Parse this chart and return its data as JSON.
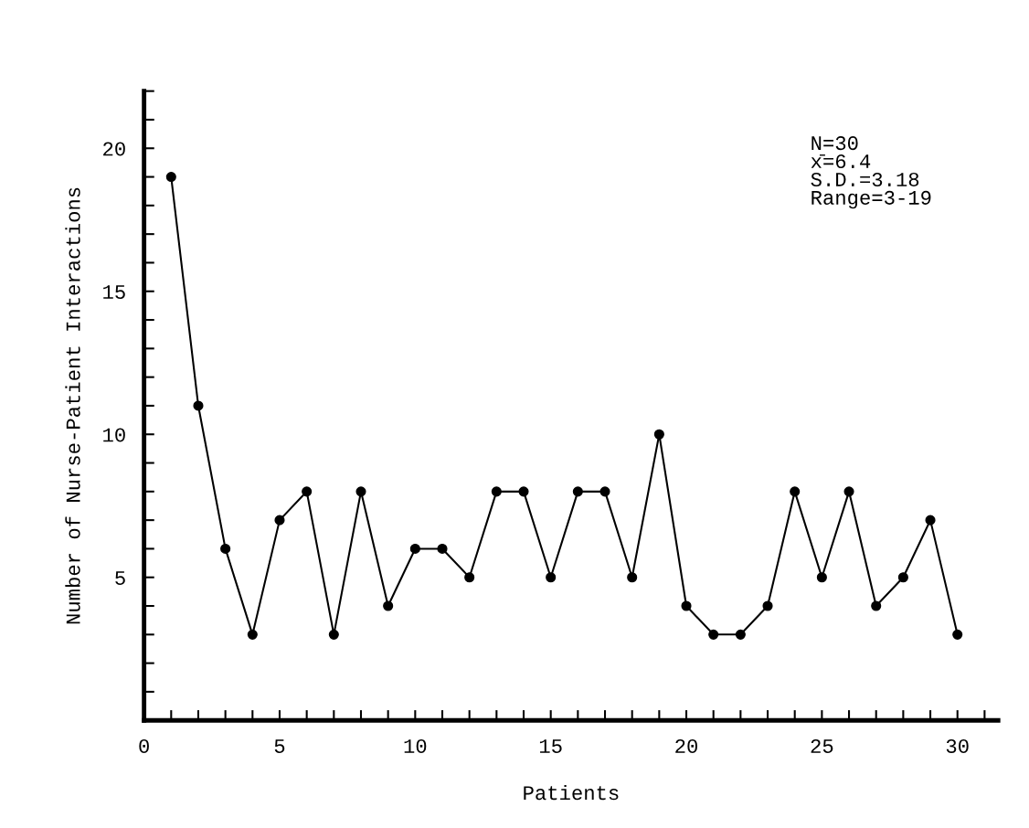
{
  "chart_data": {
    "type": "line",
    "xlabel": "Patients",
    "ylabel": "Number of Nurse-Patient Interactions",
    "x": [
      1,
      2,
      3,
      4,
      5,
      6,
      7,
      8,
      9,
      10,
      11,
      12,
      13,
      14,
      15,
      16,
      17,
      18,
      19,
      20,
      21,
      22,
      23,
      24,
      25,
      26,
      27,
      28,
      29,
      30
    ],
    "series": [
      {
        "color": "#000000",
        "values": [
          19,
          11,
          6,
          3,
          7,
          8,
          3,
          8,
          4,
          6,
          6,
          5,
          8,
          8,
          5,
          8,
          8,
          5,
          10,
          4,
          3,
          3,
          4,
          8,
          5,
          8,
          4,
          5,
          7,
          3
        ]
      }
    ],
    "xlim": [
      0,
      31.5
    ],
    "xticks": [
      0,
      {
        "value": 1,
        "label": null
      },
      {
        "value": 2,
        "label": null
      },
      {
        "value": 3,
        "label": null
      },
      {
        "value": 4,
        "label": null
      },
      5,
      {
        "value": 6,
        "label": null
      },
      {
        "value": 7,
        "label": null
      },
      {
        "value": 8,
        "label": null
      },
      {
        "value": 9,
        "label": null
      },
      10,
      {
        "value": 11,
        "label": null
      },
      {
        "value": 12,
        "label": null
      },
      {
        "value": 13,
        "label": null
      },
      {
        "value": 14,
        "label": null
      },
      15,
      {
        "value": 16,
        "label": null
      },
      {
        "value": 17,
        "label": null
      },
      {
        "value": 18,
        "label": null
      },
      {
        "value": 19,
        "label": null
      },
      20,
      {
        "value": 21,
        "label": null
      },
      {
        "value": 22,
        "label": null
      },
      {
        "value": 23,
        "label": null
      },
      {
        "value": 24,
        "label": null
      },
      25,
      {
        "value": 26,
        "label": null
      },
      {
        "value": 27,
        "label": null
      },
      {
        "value": 28,
        "label": null
      },
      {
        "value": 29,
        "label": null
      },
      30,
      {
        "value": 31,
        "label": null
      }
    ],
    "ylim": [
      0,
      22
    ],
    "yticks": [
      {
        "value": 1,
        "label": null
      },
      {
        "value": 2,
        "label": null
      },
      {
        "value": 3,
        "label": null
      },
      {
        "value": 4,
        "label": null
      },
      5,
      {
        "value": 6,
        "label": null
      },
      {
        "value": 7,
        "label": null
      },
      {
        "value": 8,
        "label": null
      },
      {
        "value": 9,
        "label": null
      },
      10,
      {
        "value": 11,
        "label": null
      },
      {
        "value": 12,
        "label": null
      },
      {
        "value": 13,
        "label": null
      },
      {
        "value": 14,
        "label": null
      },
      15,
      {
        "value": 16,
        "label": null
      },
      {
        "value": 17,
        "label": null
      },
      {
        "value": 18,
        "label": null
      },
      {
        "value": 19,
        "label": null
      },
      20,
      {
        "value": 21,
        "label": null
      },
      {
        "value": 22,
        "label": null
      }
    ],
    "annotations": [
      "N=30\nx̄=6.4\nS.D.=3.18\nRange=3-19"
    ],
    "marker": "circle",
    "line_style": "solid",
    "grid": false,
    "legend": false
  }
}
